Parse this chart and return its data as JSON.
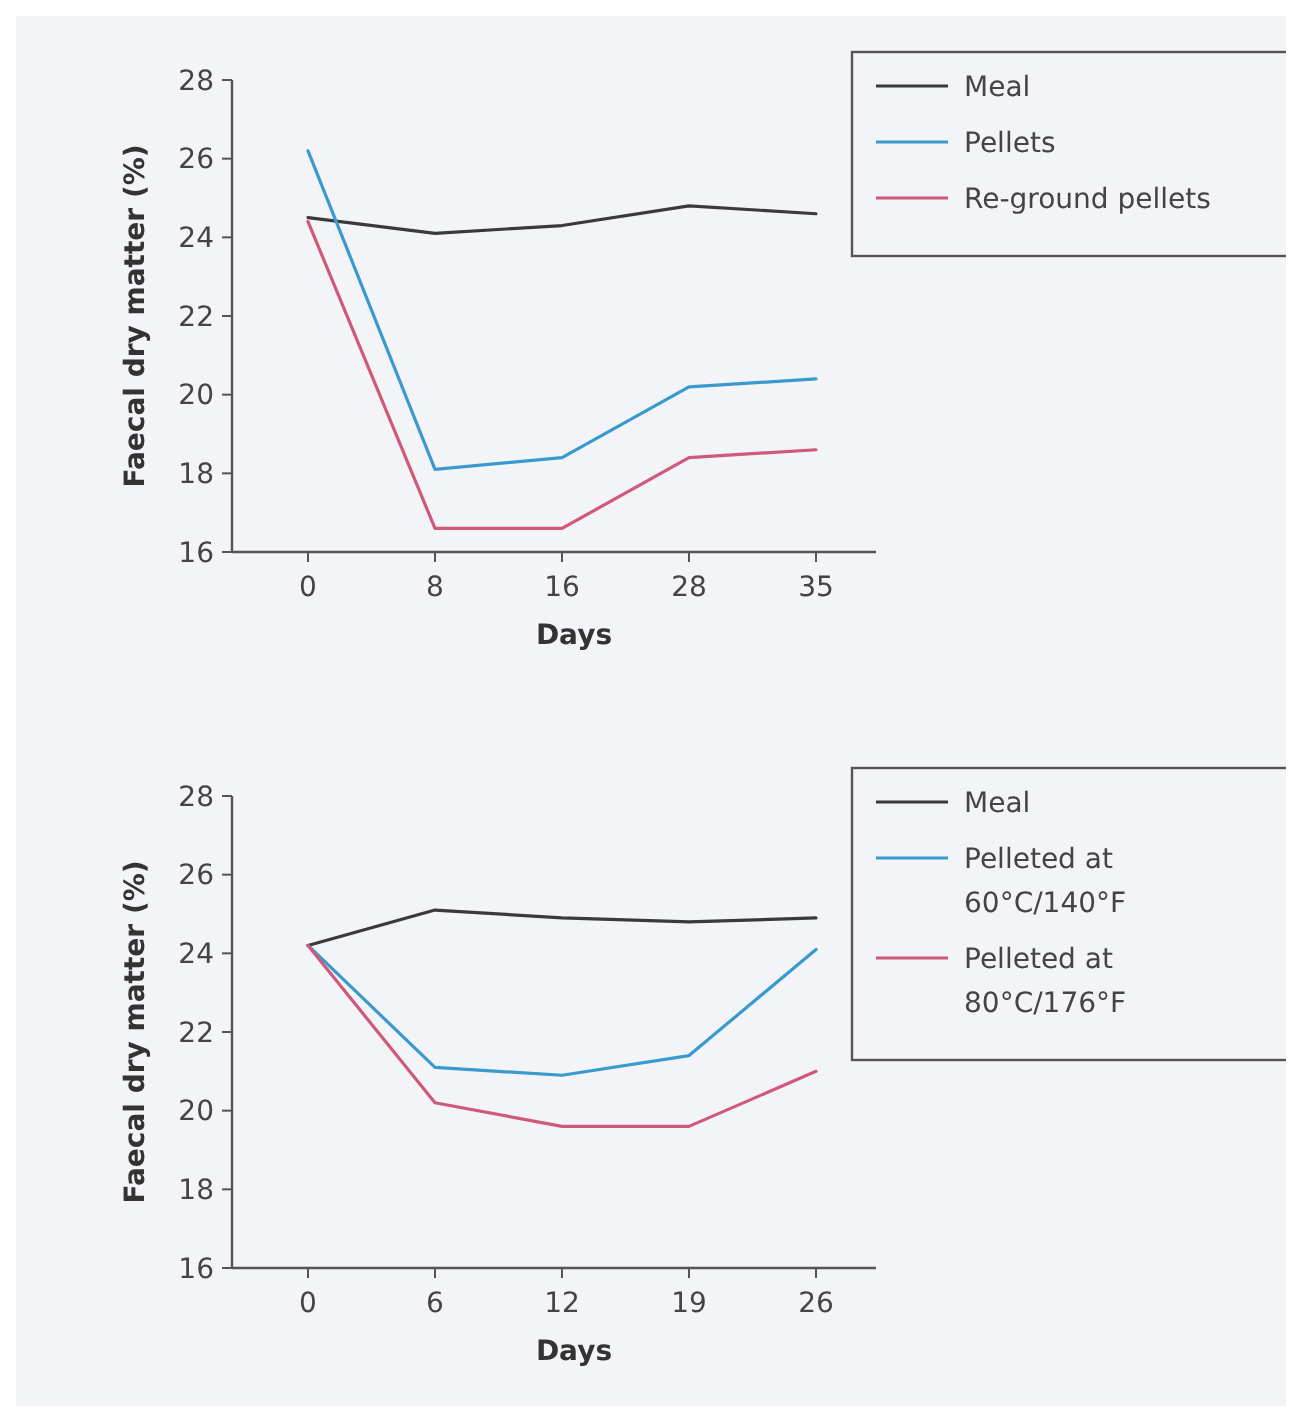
{
  "chart_data": [
    {
      "type": "line",
      "xlabel": "Days",
      "ylabel": "Faecal dry matter (%)",
      "categories": [
        "0",
        "8",
        "16",
        "28",
        "35"
      ],
      "ylim": [
        16,
        28
      ],
      "yticks": [
        16,
        18,
        20,
        22,
        24,
        26,
        28
      ],
      "legend": "top right",
      "grid": false,
      "series": [
        {
          "name": "Meal",
          "color": "#3a3a3a",
          "values": [
            24.5,
            24.1,
            24.3,
            24.8,
            24.6
          ]
        },
        {
          "name": "Pellets",
          "color": "#3a9ad0",
          "values": [
            26.2,
            18.1,
            18.4,
            20.2,
            20.4
          ]
        },
        {
          "name": "Re-ground pellets",
          "color": "#d0587a",
          "values": [
            24.4,
            16.6,
            16.6,
            18.4,
            18.6
          ]
        }
      ]
    },
    {
      "type": "line",
      "xlabel": "Days",
      "ylabel": "Faecal dry matter (%)",
      "categories": [
        "0",
        "6",
        "12",
        "19",
        "26"
      ],
      "ylim": [
        16,
        28
      ],
      "yticks": [
        16,
        18,
        20,
        22,
        24,
        26,
        28
      ],
      "legend": "top right",
      "grid": false,
      "series": [
        {
          "name": "Meal",
          "color": "#3a3a3a",
          "values": [
            24.2,
            25.1,
            24.9,
            24.8,
            24.9
          ]
        },
        {
          "name": "Pelleted at 60°C/140°F",
          "color": "#3a9ad0",
          "values": [
            24.2,
            21.1,
            20.9,
            21.4,
            24.1
          ]
        },
        {
          "name": "Pelleted at 80°C/176°F",
          "color": "#d0587a",
          "values": [
            24.2,
            20.2,
            19.6,
            19.6,
            21.0
          ]
        }
      ]
    }
  ]
}
